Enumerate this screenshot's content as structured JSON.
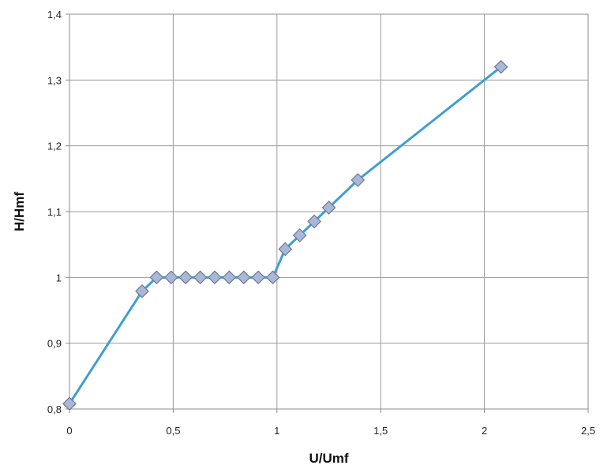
{
  "chart_data": {
    "type": "line",
    "title": "",
    "xlabel": "U/Umf",
    "ylabel": "H/Hmf",
    "xlim": [
      0,
      2.5
    ],
    "ylim": [
      0.8,
      1.4
    ],
    "x_ticks": [
      "0",
      "0,5",
      "1",
      "1,5",
      "2",
      "2,5"
    ],
    "y_ticks": [
      "0,8",
      "0,9",
      "1",
      "1,1",
      "1,2",
      "1,3",
      "1,4"
    ],
    "grid": true,
    "legend": "none",
    "colors": {
      "line": "#3f9fd0",
      "marker_fill": "#a9b8d8",
      "marker_stroke": "#6c7890",
      "grid": "#9a9a9a",
      "frame": "#8c8c8c"
    },
    "series": [
      {
        "marker": "diamond",
        "x": [
          0,
          0.35,
          0.42,
          0.49,
          0.56,
          0.63,
          0.7,
          0.77,
          0.84,
          0.91,
          0.98,
          1.04,
          1.11,
          1.18,
          1.25,
          1.39,
          2.08
        ],
        "y": [
          0.808,
          0.979,
          1.0,
          1.0,
          1.0,
          1.0,
          1.0,
          1.0,
          1.0,
          1.0,
          1.0,
          1.043,
          1.064,
          1.085,
          1.106,
          1.148,
          1.32
        ]
      }
    ]
  }
}
